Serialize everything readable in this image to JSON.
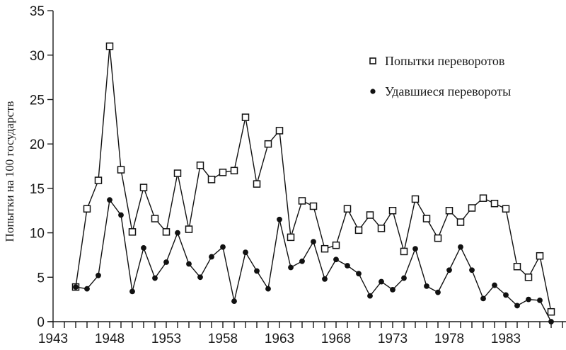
{
  "chart_data": {
    "type": "line",
    "title": "",
    "xlabel": "",
    "ylabel": "Попытки на 100 государств",
    "xlim": [
      1943,
      1988
    ],
    "ylim": [
      0,
      35
    ],
    "x_ticks": [
      1943,
      1948,
      1953,
      1958,
      1963,
      1968,
      1973,
      1978,
      1983
    ],
    "y_ticks": [
      0,
      5,
      10,
      15,
      20,
      25,
      30,
      35
    ],
    "grid": false,
    "legend_position": "upper right",
    "x": [
      1945,
      1946,
      1947,
      1948,
      1949,
      1950,
      1951,
      1952,
      1953,
      1954,
      1955,
      1956,
      1957,
      1958,
      1959,
      1960,
      1961,
      1962,
      1963,
      1964,
      1965,
      1966,
      1967,
      1968,
      1969,
      1970,
      1971,
      1972,
      1973,
      1974,
      1975,
      1976,
      1977,
      1978,
      1979,
      1980,
      1981,
      1982,
      1983,
      1984,
      1985,
      1986,
      1987
    ],
    "series": [
      {
        "name": "Попытки переворотов",
        "marker": "open-square",
        "values": [
          3.9,
          12.7,
          15.9,
          31.0,
          17.1,
          10.1,
          15.1,
          11.6,
          10.1,
          16.7,
          10.4,
          17.6,
          16.0,
          16.8,
          17.0,
          23.0,
          15.5,
          20.0,
          21.5,
          9.5,
          13.6,
          13.0,
          8.2,
          8.6,
          12.7,
          10.3,
          12.0,
          10.5,
          12.5,
          7.9,
          13.8,
          11.6,
          9.4,
          12.5,
          11.2,
          12.8,
          13.9,
          13.3,
          12.7,
          6.2,
          5.0,
          7.4,
          1.1
        ]
      },
      {
        "name": "Удавшиеся перевороты",
        "marker": "filled-circle",
        "values": [
          3.9,
          3.7,
          5.2,
          13.7,
          12.0,
          3.4,
          8.3,
          4.9,
          6.7,
          10.0,
          6.5,
          5.0,
          7.3,
          8.4,
          2.3,
          7.8,
          5.7,
          3.7,
          11.5,
          6.1,
          6.8,
          9.0,
          4.8,
          7.0,
          6.3,
          5.4,
          2.9,
          4.5,
          3.6,
          4.9,
          8.2,
          4.0,
          3.3,
          5.8,
          8.4,
          5.8,
          2.6,
          4.1,
          3.0,
          1.8,
          2.5,
          2.4,
          0.0
        ]
      }
    ]
  },
  "legend": {
    "items": [
      {
        "label": "Попытки переворотов",
        "marker": "open-square-icon"
      },
      {
        "label": "Удавшиеся перевороты",
        "marker": "filled-circle-icon"
      }
    ]
  },
  "axes": {
    "ylabel": "Попытки на 100 государств"
  }
}
